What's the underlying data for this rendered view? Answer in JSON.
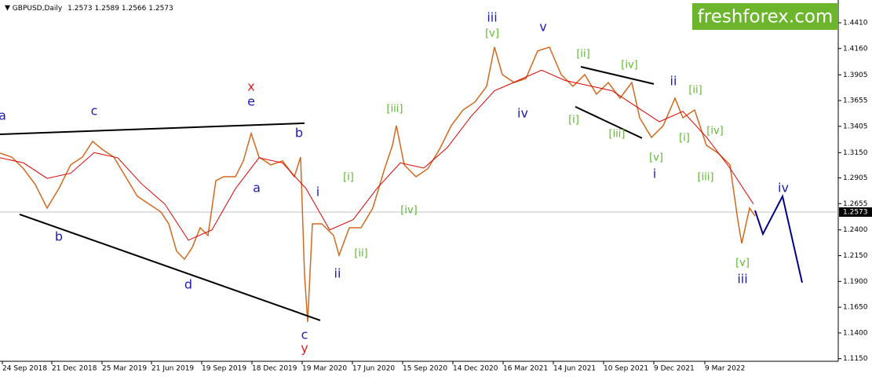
{
  "header": {
    "symbol": "GBPUSD,Daily",
    "open": 1.2573,
    "high": 1.2589,
    "low": 1.2566,
    "close": 1.2573
  },
  "logo": "freshforex.com",
  "chart_data": {
    "type": "line",
    "xlim": [
      0,
      1068
    ],
    "ylim": [
      1.1125,
      1.4631
    ],
    "xticks": [
      {
        "value": 3,
        "label": "24 Sep 2018"
      },
      {
        "value": 66,
        "label": "21 Dec 2018"
      },
      {
        "value": 130,
        "label": "25 Mar 2019"
      },
      {
        "value": 193,
        "label": "21 Jun 2019"
      },
      {
        "value": 257,
        "label": "19 Sep 2019"
      },
      {
        "value": 321,
        "label": "18 Dec 2019"
      },
      {
        "value": 385,
        "label": "19 Mar 2020"
      },
      {
        "value": 449,
        "label": "17 Jun 2020"
      },
      {
        "value": 513,
        "label": "15 Sep 2020"
      },
      {
        "value": 577,
        "label": "14 Dec 2020"
      },
      {
        "value": 641,
        "label": "16 Mar 2021"
      },
      {
        "value": 705,
        "label": "14 Jun 2021"
      },
      {
        "value": 769,
        "label": "10 Sep 2021"
      },
      {
        "value": 833,
        "label": "9 Dec 2021"
      },
      {
        "value": 898,
        "label": "9 Mar 2022"
      }
    ],
    "yticks": [
      {
        "value": 1.441,
        "label": "1.4410"
      },
      {
        "value": 1.416,
        "label": "1.4160"
      },
      {
        "value": 1.3905,
        "label": "1.3905"
      },
      {
        "value": 1.3655,
        "label": "1.3655"
      },
      {
        "value": 1.3405,
        "label": "1.3405"
      },
      {
        "value": 1.315,
        "label": "1.3150"
      },
      {
        "value": 1.2905,
        "label": "1.2905"
      },
      {
        "value": 1.2655,
        "label": "1.2655"
      },
      {
        "value": 1.24,
        "label": "1.2400"
      },
      {
        "value": 1.215,
        "label": "1.2150"
      },
      {
        "value": 1.19,
        "label": "1.1900"
      },
      {
        "value": 1.165,
        "label": "1.1650"
      },
      {
        "value": 1.14,
        "label": "1.1400"
      },
      {
        "value": 1.115,
        "label": "1.1150"
      }
    ],
    "last": 1.2573,
    "series": [
      {
        "color": "#d2691e",
        "x": [
          0,
          15,
          30,
          45,
          60,
          75,
          90,
          105,
          118,
          130,
          145,
          160,
          175,
          190,
          205,
          215,
          225,
          235,
          245,
          255,
          265,
          275,
          285,
          300,
          310,
          320,
          330,
          345,
          360,
          375,
          383,
          388,
          392,
          398,
          410,
          425,
          432,
          445,
          460,
          475,
          490,
          500,
          505,
          515,
          530,
          545,
          560,
          575,
          590,
          605,
          620,
          630,
          640,
          655,
          670,
          685,
          700,
          715,
          730,
          745,
          760,
          775,
          790,
          805,
          815,
          830,
          845,
          860,
          870,
          885,
          900,
          915,
          930,
          940,
          945,
          955,
          962
        ],
        "values": [
          1.3145,
          1.3107,
          1.2993,
          1.284,
          1.2612,
          1.2802,
          1.3031,
          1.3107,
          1.3259,
          1.3183,
          1.3107,
          1.2916,
          1.2726,
          1.265,
          1.2574,
          1.2459,
          1.2193,
          1.2116,
          1.2231,
          1.2421,
          1.2345,
          1.2878,
          1.2916,
          1.2916,
          1.3069,
          1.3336,
          1.3107,
          1.3031,
          1.3069,
          1.2916,
          1.3107,
          1.1964,
          1.1507,
          1.2459,
          1.2459,
          1.2345,
          1.2154,
          1.2421,
          1.2421,
          1.2612,
          1.2993,
          1.3221,
          1.3412,
          1.3031,
          1.2916,
          1.2993,
          1.3183,
          1.3412,
          1.3564,
          1.364,
          1.3793,
          1.4174,
          1.3907,
          1.3831,
          1.3869,
          1.4136,
          1.4174,
          1.3907,
          1.3793,
          1.3907,
          1.3717,
          1.3831,
          1.3678,
          1.3831,
          1.3488,
          1.3297,
          1.3412,
          1.3678,
          1.3488,
          1.3564,
          1.3221,
          1.3145,
          1.3031,
          1.2497,
          1.2269,
          1.2612,
          1.2535
        ]
      },
      {
        "color": "#e00000",
        "x": [
          0,
          30,
          60,
          90,
          120,
          150,
          180,
          210,
          240,
          270,
          300,
          330,
          360,
          390,
          420,
          450,
          480,
          510,
          540,
          570,
          600,
          630,
          660,
          690,
          720,
          750,
          780,
          810,
          840,
          870,
          900,
          930,
          960
        ],
        "values": [
          1.31,
          1.305,
          1.29,
          1.295,
          1.315,
          1.31,
          1.285,
          1.265,
          1.23,
          1.24,
          1.28,
          1.31,
          1.305,
          1.28,
          1.24,
          1.25,
          1.28,
          1.305,
          1.3,
          1.32,
          1.35,
          1.375,
          1.385,
          1.395,
          1.385,
          1.38,
          1.375,
          1.36,
          1.345,
          1.355,
          1.33,
          1.3,
          1.265
        ]
      }
    ],
    "trend_lines": [
      {
        "color": "#000000",
        "x": [
          0,
          388
        ],
        "y": [
          1.3328,
          1.3435
        ]
      },
      {
        "color": "#000000",
        "x": [
          25,
          408
        ],
        "y": [
          1.2551,
          1.1522
        ]
      },
      {
        "color": "#000000",
        "x": [
          740,
          833
        ],
        "y": [
          1.3983,
          1.3816
        ]
      },
      {
        "color": "#000000",
        "x": [
          733,
          818
        ],
        "y": [
          1.3595,
          1.329
        ]
      }
    ],
    "forecast": {
      "color": "#00008b",
      "x": [
        962,
        972,
        997,
        1022
      ],
      "values": [
        1.2589,
        1.236,
        1.2726,
        1.1888
      ]
    },
    "annotations": [
      {
        "text": "a",
        "color": "#1c1cb4",
        "x": 3,
        "y": 1.3503
      },
      {
        "text": "b",
        "color": "#1c1cb4",
        "x": 75,
        "y": 1.233
      },
      {
        "text": "c",
        "color": "#1c1cb4",
        "x": 120,
        "y": 1.3549
      },
      {
        "text": "d",
        "color": "#1c1cb4",
        "x": 240,
        "y": 1.1865
      },
      {
        "text": "e",
        "color": "#1c1cb4",
        "x": 320,
        "y": 1.364
      },
      {
        "text": "x",
        "color": "#e02020",
        "x": 320,
        "y": 1.3785
      },
      {
        "text": "a",
        "color": "#1c1cb4",
        "x": 327,
        "y": 1.2802
      },
      {
        "text": "b",
        "color": "#1c1cb4",
        "x": 381,
        "y": 1.3336
      },
      {
        "text": "c",
        "color": "#1c1cb4",
        "x": 388,
        "y": 1.1377
      },
      {
        "text": "y",
        "color": "#e02020",
        "x": 388,
        "y": 1.1248
      },
      {
        "text": "i",
        "color": "#1c1cb4",
        "x": 405,
        "y": 1.2764
      },
      {
        "text": "ii",
        "color": "#1c1cb4",
        "x": 430,
        "y": 1.1972
      },
      {
        "text": "[i]",
        "color": "#5cb82a",
        "x": 444,
        "y": 1.2909
      },
      {
        "text": "[ii]",
        "color": "#5cb82a",
        "x": 460,
        "y": 1.217
      },
      {
        "text": "[iii]",
        "color": "#5cb82a",
        "x": 503,
        "y": 1.3572
      },
      {
        "text": "[iv]",
        "color": "#5cb82a",
        "x": 521,
        "y": 1.2589
      },
      {
        "text": "iii",
        "color": "#1c1cb4",
        "x": 627,
        "y": 1.4456
      },
      {
        "text": "[v]",
        "color": "#5cb82a",
        "x": 627,
        "y": 1.4303
      },
      {
        "text": "iv",
        "color": "#1c1cb4",
        "x": 666,
        "y": 1.3526
      },
      {
        "text": "v",
        "color": "#1c1cb4",
        "x": 692,
        "y": 1.4364
      },
      {
        "text": "[ii]",
        "color": "#5cb82a",
        "x": 743,
        "y": 1.4105
      },
      {
        "text": "[i]",
        "color": "#5cb82a",
        "x": 731,
        "y": 1.3465
      },
      {
        "text": "[iv]",
        "color": "#5cb82a",
        "x": 802,
        "y": 1.3999
      },
      {
        "text": "[iii]",
        "color": "#5cb82a",
        "x": 786,
        "y": 1.3328
      },
      {
        "text": "[v]",
        "color": "#5cb82a",
        "x": 836,
        "y": 1.3099
      },
      {
        "text": "i",
        "color": "#1c1cb4",
        "x": 834,
        "y": 1.2939
      },
      {
        "text": "ii",
        "color": "#1c1cb4",
        "x": 858,
        "y": 1.3838
      },
      {
        "text": "[ii]",
        "color": "#5cb82a",
        "x": 886,
        "y": 1.3755
      },
      {
        "text": "[i]",
        "color": "#5cb82a",
        "x": 872,
        "y": 1.329
      },
      {
        "text": "[iv]",
        "color": "#5cb82a",
        "x": 911,
        "y": 1.3358
      },
      {
        "text": "[iii]",
        "color": "#5cb82a",
        "x": 899,
        "y": 1.2909
      },
      {
        "text": "iv",
        "color": "#1c1cb4",
        "x": 998,
        "y": 1.2802
      },
      {
        "text": "[v]",
        "color": "#5cb82a",
        "x": 946,
        "y": 1.2078
      },
      {
        "text": "iii",
        "color": "#1c1cb4",
        "x": 946,
        "y": 1.1918
      }
    ]
  }
}
